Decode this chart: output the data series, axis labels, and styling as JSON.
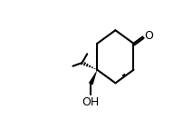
{
  "bg_color": "#ffffff",
  "line_color": "#000000",
  "lw": 1.5,
  "figsize": [
    2.02,
    1.32
  ],
  "dpi": 100,
  "O_label": "O",
  "OH_label": "OH",
  "font_size": 9
}
